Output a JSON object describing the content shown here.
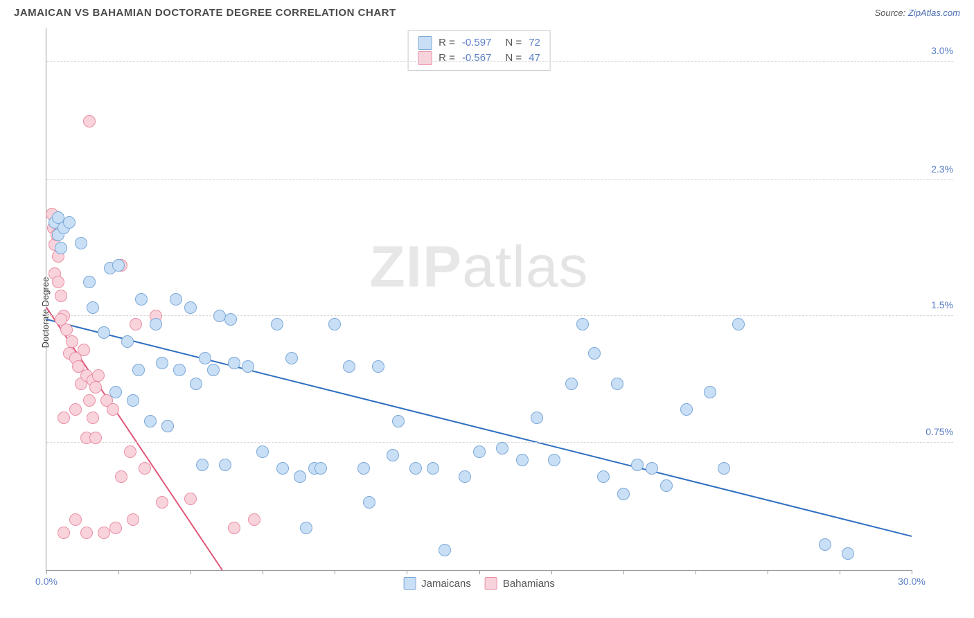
{
  "header": {
    "title": "JAMAICAN VS BAHAMIAN DOCTORATE DEGREE CORRELATION CHART",
    "source_prefix": "Source: ",
    "source_name": "ZipAtlas.com"
  },
  "chart": {
    "type": "scatter",
    "y_axis_label": "Doctorate Degree",
    "watermark_1": "ZIP",
    "watermark_2": "atlas",
    "background_color": "#ffffff",
    "grid_color": "#d8d8d8",
    "axis_color": "#999999",
    "tick_label_color": "#5b7fc7",
    "xlim": [
      0,
      30
    ],
    "ylim": [
      0,
      3.2
    ],
    "x_ticks": [
      0,
      2.5,
      5,
      7.5,
      10,
      12.5,
      15,
      17.5,
      20,
      22.5,
      25,
      27.5,
      30
    ],
    "y_gridlines": [
      0.75,
      1.5,
      2.3,
      3.0
    ],
    "y_tick_labels": [
      {
        "v": 0.75,
        "t": "0.75%"
      },
      {
        "v": 1.5,
        "t": "1.5%"
      },
      {
        "v": 2.3,
        "t": "2.3%"
      },
      {
        "v": 3.0,
        "t": "3.0%"
      }
    ],
    "x_tick_labels": [
      {
        "v": 0,
        "t": "0.0%"
      },
      {
        "v": 30,
        "t": "30.0%"
      }
    ],
    "marker_radius": 9,
    "marker_stroke_width": 1.5,
    "trend_line_width": 2,
    "series": [
      {
        "name": "Jamaicans",
        "fill": "#c9dff5",
        "stroke": "#7ba8d9",
        "line_color": "#2f6fc0",
        "R": "-0.597",
        "N": "72",
        "trend": {
          "x1": 0,
          "y1": 1.48,
          "x2": 30,
          "y2": 0.2
        },
        "points": [
          [
            0.3,
            2.05
          ],
          [
            0.4,
            1.98
          ],
          [
            0.4,
            2.08
          ],
          [
            0.6,
            2.02
          ],
          [
            0.5,
            1.9
          ],
          [
            0.8,
            2.05
          ],
          [
            1.2,
            1.93
          ],
          [
            1.5,
            1.7
          ],
          [
            2.2,
            1.78
          ],
          [
            2.5,
            1.8
          ],
          [
            1.6,
            1.55
          ],
          [
            2.0,
            1.4
          ],
          [
            2.8,
            1.35
          ],
          [
            3.3,
            1.6
          ],
          [
            3.8,
            1.45
          ],
          [
            4.5,
            1.6
          ],
          [
            5.0,
            1.55
          ],
          [
            5.5,
            1.25
          ],
          [
            6.0,
            1.5
          ],
          [
            6.4,
            1.48
          ],
          [
            7.0,
            1.2
          ],
          [
            8.0,
            1.45
          ],
          [
            8.5,
            1.25
          ],
          [
            4.0,
            1.22
          ],
          [
            3.2,
            1.18
          ],
          [
            4.6,
            1.18
          ],
          [
            5.2,
            1.1
          ],
          [
            5.8,
            1.18
          ],
          [
            6.5,
            1.22
          ],
          [
            4.2,
            0.85
          ],
          [
            3.6,
            0.88
          ],
          [
            2.4,
            1.05
          ],
          [
            3.0,
            1.0
          ],
          [
            7.5,
            0.7
          ],
          [
            8.2,
            0.6
          ],
          [
            8.8,
            0.55
          ],
          [
            9.3,
            0.6
          ],
          [
            10.0,
            1.45
          ],
          [
            10.5,
            1.2
          ],
          [
            11.5,
            1.2
          ],
          [
            12.2,
            0.88
          ],
          [
            11.0,
            0.6
          ],
          [
            12.0,
            0.68
          ],
          [
            12.8,
            0.6
          ],
          [
            13.4,
            0.6
          ],
          [
            13.8,
            0.12
          ],
          [
            14.5,
            0.55
          ],
          [
            15.0,
            0.7
          ],
          [
            15.8,
            0.72
          ],
          [
            16.5,
            0.65
          ],
          [
            17.0,
            0.9
          ],
          [
            17.6,
            0.65
          ],
          [
            18.2,
            1.1
          ],
          [
            18.6,
            1.45
          ],
          [
            19.0,
            1.28
          ],
          [
            19.3,
            0.55
          ],
          [
            19.8,
            1.1
          ],
          [
            20.5,
            0.62
          ],
          [
            21.0,
            0.6
          ],
          [
            21.5,
            0.5
          ],
          [
            22.2,
            0.95
          ],
          [
            23.0,
            1.05
          ],
          [
            23.5,
            0.6
          ],
          [
            20.0,
            0.45
          ],
          [
            24.0,
            1.45
          ],
          [
            9.0,
            0.25
          ],
          [
            9.5,
            0.6
          ],
          [
            11.2,
            0.4
          ],
          [
            5.4,
            0.62
          ],
          [
            6.2,
            0.62
          ],
          [
            27.0,
            0.15
          ],
          [
            27.8,
            0.1
          ]
        ]
      },
      {
        "name": "Bahamians",
        "fill": "#f8d3db",
        "stroke": "#e98fa4",
        "line_color": "#e05577",
        "R": "-0.567",
        "N": "47",
        "trend": {
          "x1": 0,
          "y1": 1.55,
          "x2": 6.1,
          "y2": 0.0
        },
        "points": [
          [
            0.2,
            2.1
          ],
          [
            0.25,
            2.02
          ],
          [
            0.3,
            1.92
          ],
          [
            0.35,
            1.98
          ],
          [
            0.4,
            1.85
          ],
          [
            0.3,
            1.75
          ],
          [
            0.4,
            1.7
          ],
          [
            0.5,
            1.62
          ],
          [
            0.6,
            1.5
          ],
          [
            0.5,
            1.48
          ],
          [
            1.5,
            2.65
          ],
          [
            0.7,
            1.42
          ],
          [
            0.8,
            1.28
          ],
          [
            0.9,
            1.35
          ],
          [
            1.0,
            1.25
          ],
          [
            1.1,
            1.2
          ],
          [
            1.3,
            1.3
          ],
          [
            1.2,
            1.1
          ],
          [
            1.4,
            1.15
          ],
          [
            1.5,
            1.0
          ],
          [
            1.6,
            1.12
          ],
          [
            1.7,
            1.08
          ],
          [
            1.8,
            1.15
          ],
          [
            2.6,
            1.8
          ],
          [
            2.1,
            1.0
          ],
          [
            2.3,
            0.95
          ],
          [
            1.6,
            0.9
          ],
          [
            1.0,
            0.95
          ],
          [
            0.6,
            0.9
          ],
          [
            1.4,
            0.78
          ],
          [
            1.7,
            0.78
          ],
          [
            2.6,
            0.55
          ],
          [
            2.9,
            0.7
          ],
          [
            3.1,
            1.45
          ],
          [
            3.4,
            0.6
          ],
          [
            3.8,
            1.5
          ],
          [
            4.0,
            0.4
          ],
          [
            4.2,
            0.85
          ],
          [
            0.6,
            0.22
          ],
          [
            1.0,
            0.3
          ],
          [
            1.4,
            0.22
          ],
          [
            2.0,
            0.22
          ],
          [
            2.4,
            0.25
          ],
          [
            3.0,
            0.3
          ],
          [
            5.0,
            0.42
          ],
          [
            6.5,
            0.25
          ],
          [
            7.2,
            0.3
          ]
        ]
      }
    ],
    "legend_bottom": [
      {
        "label": "Jamaicans",
        "fill": "#c9dff5",
        "stroke": "#7ba8d9"
      },
      {
        "label": "Bahamians",
        "fill": "#f8d3db",
        "stroke": "#e98fa4"
      }
    ]
  }
}
